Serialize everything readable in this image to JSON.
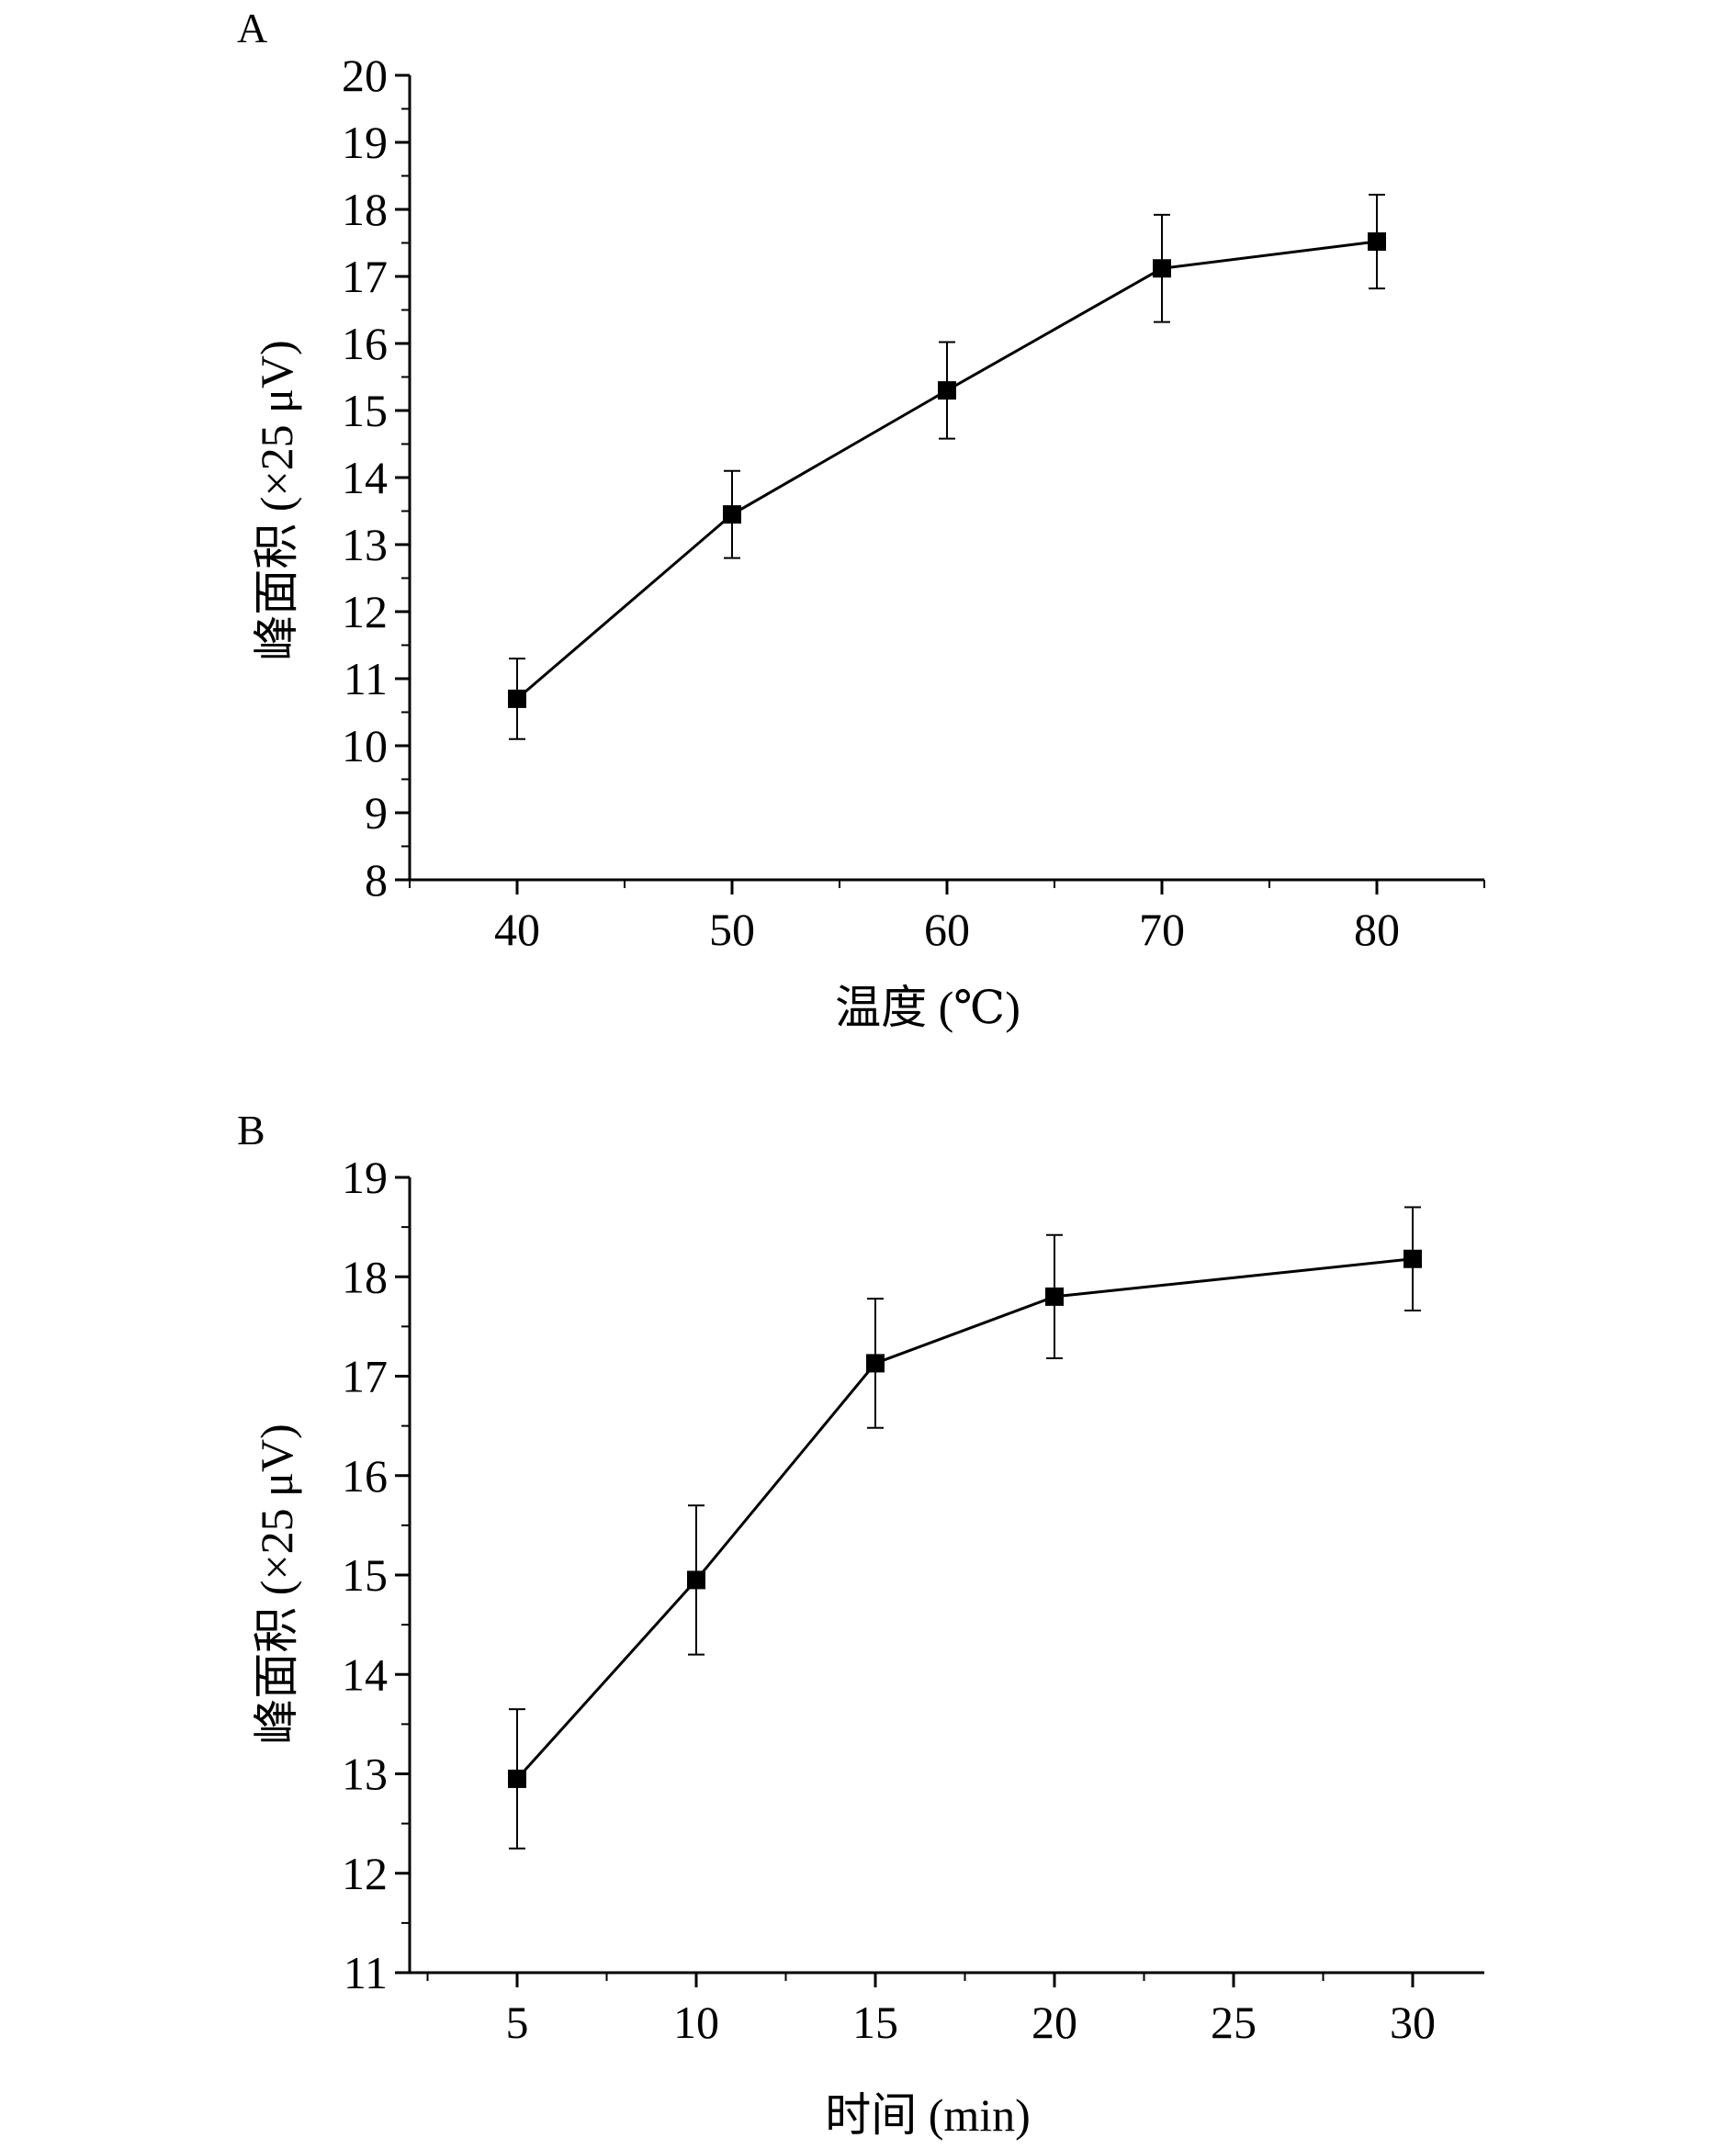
{
  "chart_data": [
    {
      "panel_label": "A",
      "type": "line",
      "xlabel": "温度 (℃)",
      "ylabel": "峰面积 (×25 μV)",
      "x": [
        40,
        50,
        60,
        70,
        80
      ],
      "y": [
        10.7,
        13.45,
        15.3,
        17.12,
        17.52
      ],
      "error": [
        0.6,
        0.65,
        0.72,
        0.8,
        0.7
      ],
      "xlim": [
        35,
        85
      ],
      "ylim": [
        8,
        20
      ],
      "xticks": [
        "40",
        "50",
        "60",
        "70",
        "80"
      ],
      "yticks": [
        "8",
        "9",
        "10",
        "11",
        "12",
        "13",
        "14",
        "15",
        "16",
        "17",
        "18",
        "19",
        "20"
      ],
      "grid": false,
      "marker": "square",
      "color": "#000000"
    },
    {
      "panel_label": "B",
      "type": "line",
      "xlabel": "时间 (min)",
      "ylabel": "峰面积 (×25 μV)",
      "x": [
        5,
        10,
        15,
        20,
        30
      ],
      "y": [
        12.95,
        14.95,
        17.13,
        17.8,
        18.18
      ],
      "error": [
        0.7,
        0.75,
        0.65,
        0.62,
        0.52
      ],
      "xlim": [
        2,
        32
      ],
      "ylim": [
        11,
        19
      ],
      "xticks": [
        "5",
        "10",
        "15",
        "20",
        "25",
        "30"
      ],
      "yticks": [
        "11",
        "12",
        "13",
        "14",
        "15",
        "16",
        "17",
        "18",
        "19"
      ],
      "grid": false,
      "marker": "square",
      "color": "#000000"
    }
  ]
}
